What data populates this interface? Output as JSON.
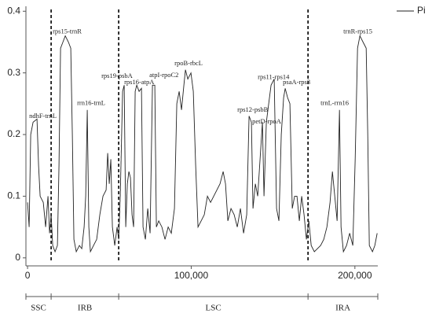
{
  "chart_data": {
    "type": "line",
    "x": [
      0,
      960,
      1920,
      3360,
      5760,
      6720,
      7680,
      9600,
      11040,
      12480,
      13440,
      14400,
      15360,
      16800,
      18240,
      19200,
      20160,
      21600,
      23040,
      24960,
      26400,
      27360,
      28320,
      29760,
      31680,
      33120,
      34560,
      35520,
      36480,
      37440,
      38400,
      40320,
      42240,
      44160,
      46080,
      48000,
      48960,
      49920,
      50880,
      51840,
      53280,
      54720,
      55680,
      56640,
      58080,
      59040,
      60000,
      60960,
      61920,
      62880,
      63840,
      64800,
      65760,
      66720,
      68160,
      69600,
      70560,
      72000,
      73440,
      74880,
      76320,
      77760,
      78720,
      80160,
      82080,
      84000,
      85920,
      87840,
      89760,
      91200,
      92640,
      94080,
      95520,
      96480,
      97920,
      99840,
      101280,
      102720,
      104160,
      106080,
      108000,
      109920,
      111840,
      113760,
      115680,
      117600,
      119520,
      120960,
      122400,
      124320,
      126240,
      128160,
      130080,
      132000,
      133920,
      135360,
      136800,
      137760,
      139200,
      140640,
      142080,
      143520,
      144480,
      145920,
      147360,
      148800,
      150720,
      152160,
      153600,
      155040,
      156480,
      157440,
      158880,
      160320,
      161760,
      163200,
      164640,
      166080,
      167520,
      168960,
      170400,
      171840,
      173280,
      175200,
      177120,
      179040,
      180960,
      182880,
      184800,
      186240,
      187680,
      189120,
      190560,
      191520,
      192960,
      194880,
      196800,
      198720,
      200160,
      201600,
      203040,
      204960,
      206880,
      207840,
      208800,
      210720,
      212160,
      213600
    ],
    "series": [
      {
        "name": "Pi",
        "color": "#222222",
        "values": [
          0.09,
          0.05,
          0.2,
          0.22,
          0.225,
          0.15,
          0.1,
          0.09,
          0.05,
          0.1,
          0.04,
          0.07,
          0.02,
          0.01,
          0.02,
          0.15,
          0.34,
          0.35,
          0.36,
          0.35,
          0.34,
          0.2,
          0.03,
          0.01,
          0.02,
          0.015,
          0.05,
          0.1,
          0.24,
          0.05,
          0.01,
          0.02,
          0.03,
          0.07,
          0.1,
          0.11,
          0.17,
          0.12,
          0.16,
          0.05,
          0.02,
          0.05,
          0.03,
          0.1,
          0.27,
          0.28,
          0.05,
          0.12,
          0.14,
          0.13,
          0.07,
          0.05,
          0.27,
          0.28,
          0.27,
          0.275,
          0.05,
          0.03,
          0.08,
          0.04,
          0.28,
          0.28,
          0.05,
          0.06,
          0.05,
          0.03,
          0.05,
          0.04,
          0.08,
          0.25,
          0.27,
          0.24,
          0.28,
          0.305,
          0.29,
          0.3,
          0.27,
          0.15,
          0.05,
          0.06,
          0.07,
          0.1,
          0.09,
          0.1,
          0.11,
          0.12,
          0.14,
          0.12,
          0.06,
          0.08,
          0.07,
          0.05,
          0.08,
          0.04,
          0.07,
          0.23,
          0.22,
          0.08,
          0.12,
          0.1,
          0.16,
          0.22,
          0.1,
          0.22,
          0.25,
          0.28,
          0.29,
          0.08,
          0.06,
          0.2,
          0.26,
          0.275,
          0.26,
          0.25,
          0.08,
          0.1,
          0.1,
          0.06,
          0.1,
          0.07,
          0.03,
          0.06,
          0.02,
          0.01,
          0.015,
          0.02,
          0.03,
          0.05,
          0.09,
          0.14,
          0.1,
          0.06,
          0.24,
          0.05,
          0.01,
          0.02,
          0.04,
          0.02,
          0.16,
          0.34,
          0.36,
          0.35,
          0.34,
          0.2,
          0.02,
          0.01,
          0.02,
          0.04
        ]
      }
    ],
    "xlim": [
      -1000,
      214000
    ],
    "xticks": [
      0,
      {
        "value": 100000,
        "label": "100,000"
      },
      {
        "value": 200000,
        "label": "200,000"
      }
    ],
    "ylim": [
      -0.013,
      0.408
    ],
    "yticks": [
      0,
      0.1,
      0.2,
      0.3,
      0.4
    ],
    "boundaries": [
      14400,
      55680,
      171360
    ],
    "regions": [
      "SSC",
      "IRB",
      "LSC",
      "IRA"
    ],
    "annotations": [
      {
        "text": "ndhF-trnL",
        "x": 960,
        "y": 0.227
      },
      {
        "text": "rps15-trnR",
        "x": 15360,
        "y": 0.364
      },
      {
        "text": "rrn16-trnL",
        "x": 30240,
        "y": 0.248
      },
      {
        "text": "rps19-psbA",
        "x": 45120,
        "y": 0.292
      },
      {
        "text": "rps16-atpA",
        "x": 59040,
        "y": 0.282
      },
      {
        "text": "atpI-rpoC2",
        "x": 74400,
        "y": 0.293
      },
      {
        "text": "rpoB-rbcL",
        "x": 89760,
        "y": 0.312
      },
      {
        "text": "rps12-psbB",
        "x": 128160,
        "y": 0.237
      },
      {
        "text": "petD-rpoA",
        "x": 137280,
        "y": 0.218
      },
      {
        "text": "rps11-rps14",
        "x": 140640,
        "y": 0.29
      },
      {
        "text": "psaA-rps3",
        "x": 156000,
        "y": 0.282
      },
      {
        "text": "trnL-rrn16",
        "x": 179040,
        "y": 0.248
      },
      {
        "text": "trnR-rps15",
        "x": 192960,
        "y": 0.364
      }
    ]
  }
}
